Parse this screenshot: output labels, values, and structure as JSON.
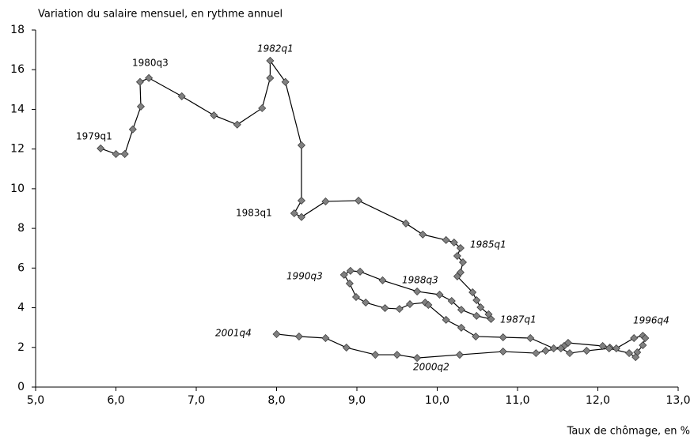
{
  "chart_data": {
    "type": "connected-scatter",
    "ylabel": "Variation du salaire mensuel, en rythme annuel",
    "xlabel": "Taux de chômage, en %",
    "x": [
      5.81,
      6.0,
      6.11,
      6.21,
      6.31,
      6.3,
      6.41,
      6.82,
      7.22,
      7.51,
      7.82,
      7.92,
      7.92,
      8.11,
      8.31,
      8.31,
      8.22,
      8.31,
      8.61,
      9.02,
      9.61,
      9.82,
      10.11,
      10.21,
      10.29,
      10.25,
      10.32,
      10.29,
      10.25,
      10.44,
      10.49,
      10.54,
      10.64,
      10.67,
      10.49,
      10.3,
      10.18,
      10.03,
      9.75,
      9.32,
      9.04,
      8.92,
      8.84,
      8.91,
      8.99,
      9.11,
      9.35,
      9.53,
      9.66,
      9.85,
      9.89,
      10.11,
      10.3,
      10.48,
      10.82,
      11.16,
      11.45,
      11.58,
      11.63,
      12.06,
      12.15,
      12.23,
      12.45,
      12.56,
      12.59,
      12.56,
      12.49,
      12.47,
      12.39,
      12.14,
      11.86,
      11.65,
      11.54,
      11.35,
      11.23,
      10.82,
      10.28,
      9.75,
      9.5,
      9.23,
      8.87,
      8.61,
      8.28,
      8.0
    ],
    "y": [
      12.03,
      11.75,
      11.75,
      12.99,
      14.14,
      15.38,
      15.58,
      14.66,
      13.7,
      13.23,
      14.06,
      15.58,
      16.45,
      15.38,
      12.19,
      9.4,
      8.76,
      8.57,
      9.36,
      9.4,
      8.25,
      7.69,
      7.41,
      7.29,
      7.01,
      6.61,
      6.29,
      5.78,
      5.58,
      4.78,
      4.38,
      4.02,
      3.67,
      3.43,
      3.59,
      3.9,
      4.34,
      4.66,
      4.82,
      5.38,
      5.82,
      5.86,
      5.66,
      5.22,
      4.54,
      4.26,
      3.98,
      3.94,
      4.18,
      4.26,
      4.14,
      3.39,
      2.99,
      2.55,
      2.51,
      2.47,
      1.95,
      2.07,
      2.23,
      2.07,
      1.99,
      1.95,
      2.47,
      2.59,
      2.47,
      2.11,
      1.75,
      1.51,
      1.71,
      1.95,
      1.83,
      1.71,
      1.95,
      1.83,
      1.71,
      1.79,
      1.63,
      1.47,
      1.63,
      1.63,
      1.99,
      2.47,
      2.55,
      2.67
    ],
    "marker_color": "#808080",
    "line_color": "#000000",
    "annotations": [
      "1979q1",
      "1980q3",
      "1982q1",
      "1983q1",
      "1985q1",
      "1990q3",
      "1988q3",
      "1987q1",
      "1996q4",
      "2001q4",
      "2000q2"
    ],
    "xlim": [
      5,
      13
    ],
    "xticks": [
      {
        "value": 5,
        "label": "5,0"
      },
      {
        "value": 6,
        "label": "6,0"
      },
      {
        "value": 7,
        "label": "7,0"
      },
      {
        "value": 8,
        "label": "8,0"
      },
      {
        "value": 9,
        "label": "9,0"
      },
      {
        "value": 10,
        "label": "10,0"
      },
      {
        "value": 11,
        "label": "11,0"
      },
      {
        "value": 12,
        "label": "12,0"
      },
      {
        "value": 13,
        "label": "13,0"
      }
    ],
    "ylim": [
      0,
      18
    ],
    "yticks": [
      0,
      2,
      4,
      6,
      8,
      10,
      12,
      14,
      16,
      18
    ]
  }
}
